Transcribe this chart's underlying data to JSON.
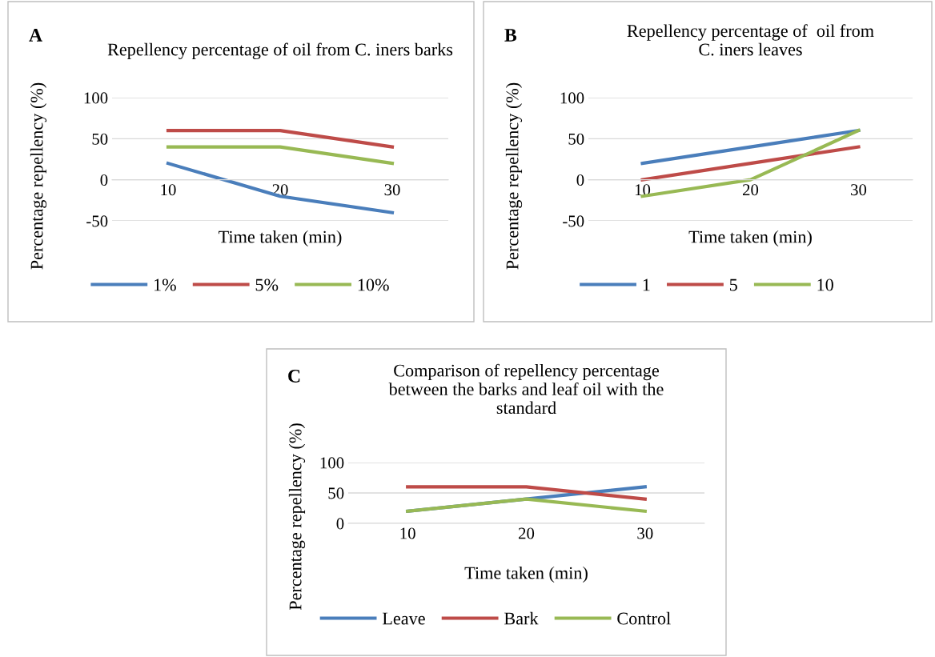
{
  "chart_data": [
    {
      "type": "line",
      "title": "Repellency percentage of oil from C. iners barks",
      "annotations": [
        "A"
      ],
      "xlabel": "Time taken (min)",
      "ylabel": "Percentage repellency (%)",
      "categories": [
        "10",
        "20",
        "30"
      ],
      "ylim": [
        -50,
        100
      ],
      "yticks": [
        -50,
        0,
        50,
        100
      ],
      "grid": "y",
      "legend": "bottom",
      "marker": "none",
      "line_style": "solid",
      "series": [
        {
          "name": "1%",
          "color": "#4a7ebb",
          "values": [
            20,
            -20,
            -40
          ]
        },
        {
          "name": "5%",
          "color": "#be4b48",
          "values": [
            60,
            60,
            40
          ]
        },
        {
          "name": "10%",
          "color": "#98b954",
          "values": [
            40,
            40,
            20
          ]
        }
      ]
    },
    {
      "type": "line",
      "title": "Repellency percentage of  oil from\nC. iners leaves",
      "annotations": [
        "B"
      ],
      "xlabel": "Time taken (min)",
      "ylabel": "Percentage repellency (%)",
      "categories": [
        "10",
        "20",
        "30"
      ],
      "ylim": [
        -50,
        100
      ],
      "yticks": [
        -50,
        0,
        50,
        100
      ],
      "grid": "y",
      "legend": "bottom",
      "marker": "none",
      "line_style": "solid",
      "series": [
        {
          "name": "1",
          "color": "#4a7ebb",
          "values": [
            20,
            40,
            60
          ]
        },
        {
          "name": "5",
          "color": "#be4b48",
          "values": [
            0,
            20,
            40
          ]
        },
        {
          "name": "10",
          "color": "#98b954",
          "values": [
            -20,
            0,
            60
          ]
        }
      ]
    },
    {
      "type": "line",
      "title": "Comparison of repellency percentage\nbetween the barks and leaf oil with the\nstandard",
      "annotations": [
        "C"
      ],
      "xlabel": "Time taken (min)",
      "ylabel": "Percentage repellency (%)",
      "categories": [
        "10",
        "20",
        "30"
      ],
      "ylim": [
        0,
        100
      ],
      "yticks": [
        0,
        50,
        100
      ],
      "grid": "y",
      "legend": "bottom",
      "marker": "none",
      "line_style": "solid",
      "series": [
        {
          "name": "Leave",
          "color": "#4a7ebb",
          "values": [
            20,
            40,
            60
          ]
        },
        {
          "name": "Bark",
          "color": "#be4b48",
          "values": [
            60,
            60,
            40
          ]
        },
        {
          "name": "Control",
          "color": "#98b954",
          "values": [
            20,
            40,
            20
          ]
        }
      ]
    }
  ]
}
